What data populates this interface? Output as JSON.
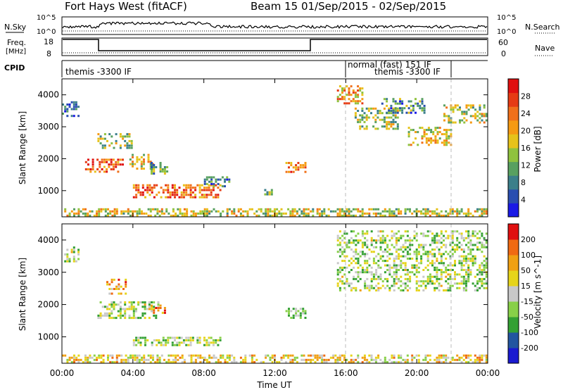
{
  "header": {
    "radar": "Fort Hays West (fitACF)",
    "beam_period": "Beam 15  01/Sep/2015 - 02/Sep/2015"
  },
  "top_panels": {
    "nsky_label": "N.Sky",
    "nsky_ticks": [
      "10^5",
      "10^0"
    ],
    "nsearch_label": "N.Search",
    "nsearch_ticks": [
      "10^5",
      "10^0"
    ],
    "freq_label": "Freq.",
    "freq_unit": "[MHz]",
    "freq_ticks": [
      "18",
      "8"
    ],
    "nave_label": "Nave",
    "nave_ticks": [
      "60",
      "0"
    ],
    "cpid_label": "CPID",
    "cpid_segments": [
      {
        "start_hour": 0,
        "end_hour": 16,
        "label": "themis -3300 IF"
      },
      {
        "start_hour": 16,
        "end_hour": 22,
        "label": "normal (fast) 151 IF"
      },
      {
        "start_hour": 16,
        "end_hour": 24,
        "label": "themis -3300 IF"
      }
    ]
  },
  "chart_data": [
    {
      "type": "heatmap",
      "panel": "power",
      "ylabel": "Slant Range [km]",
      "ylim": [
        180,
        4500
      ],
      "yticks": [
        1000,
        2000,
        3000,
        4000
      ],
      "colorbar_label": "Power [dB]",
      "colorbar_ticks": [
        "4",
        "8",
        "12",
        "16",
        "20",
        "24",
        "28"
      ],
      "colorbar_colors": [
        "#1a1ae6",
        "#2a4eb0",
        "#3b7f8a",
        "#58a060",
        "#8fc23e",
        "#e6c21a",
        "#f59a12",
        "#f0701a",
        "#e63b14",
        "#e01010"
      ],
      "x_range_hours": [
        0,
        24
      ],
      "features": [
        {
          "start_hour": 0.0,
          "end_hour": 1.0,
          "range_min": 3300,
          "range_max": 3800,
          "level": 0.2
        },
        {
          "start_hour": 1.3,
          "end_hour": 3.5,
          "range_min": 1550,
          "range_max": 2000,
          "level": 0.8
        },
        {
          "start_hour": 2.0,
          "end_hour": 4.0,
          "range_min": 2300,
          "range_max": 2800,
          "level": 0.45
        },
        {
          "start_hour": 3.8,
          "end_hour": 5.2,
          "range_min": 1650,
          "range_max": 2150,
          "level": 0.55
        },
        {
          "start_hour": 4.0,
          "end_hour": 9.0,
          "range_min": 750,
          "range_max": 1200,
          "level": 0.75
        },
        {
          "start_hour": 5.0,
          "end_hour": 6.0,
          "range_min": 1500,
          "range_max": 1900,
          "level": 0.35
        },
        {
          "start_hour": 8.0,
          "end_hour": 9.5,
          "range_min": 1100,
          "range_max": 1450,
          "level": 0.3
        },
        {
          "start_hour": 11.4,
          "end_hour": 11.9,
          "range_min": 850,
          "range_max": 1050,
          "level": 0.4
        },
        {
          "start_hour": 12.6,
          "end_hour": 13.8,
          "range_min": 1550,
          "range_max": 1900,
          "level": 0.7
        },
        {
          "start_hour": 15.5,
          "end_hour": 17.0,
          "range_min": 3700,
          "range_max": 4300,
          "level": 0.65
        },
        {
          "start_hour": 16.5,
          "end_hour": 19.0,
          "range_min": 2900,
          "range_max": 3600,
          "level": 0.45
        },
        {
          "start_hour": 18.0,
          "end_hour": 20.5,
          "range_min": 3400,
          "range_max": 3900,
          "level": 0.3
        },
        {
          "start_hour": 19.5,
          "end_hour": 22.0,
          "range_min": 2400,
          "range_max": 3000,
          "level": 0.55
        },
        {
          "start_hour": 21.5,
          "end_hour": 24.0,
          "range_min": 3100,
          "range_max": 3700,
          "level": 0.5
        },
        {
          "start_hour": 0.0,
          "end_hour": 24.0,
          "range_min": 180,
          "range_max": 450,
          "level": 0.5
        }
      ]
    },
    {
      "type": "heatmap",
      "panel": "velocity",
      "ylabel": "Slant Range [km]",
      "xlabel": "Time UT",
      "ylim": [
        180,
        4500
      ],
      "yticks": [
        1000,
        2000,
        3000,
        4000
      ],
      "xticks": [
        "00:00",
        "04:00",
        "08:00",
        "12:00",
        "16:00",
        "20:00",
        "00:00"
      ],
      "colorbar_label": "Velocity [m s^-1]",
      "colorbar_ticks": [
        "200",
        "100",
        "50",
        "15",
        "-15",
        "-50",
        "-100",
        "-200"
      ],
      "colorbar_colors": [
        "#1a1ad0",
        "#2255a0",
        "#33a033",
        "#88d048",
        "#c8c8c8",
        "#e6d41a",
        "#f0a012",
        "#f06a12",
        "#e01010"
      ],
      "x_range_hours": [
        0,
        24
      ],
      "features": [
        {
          "start_hour": 0.0,
          "end_hour": 1.0,
          "range_min": 3300,
          "range_max": 3800,
          "level": 0.45
        },
        {
          "start_hour": 2.5,
          "end_hour": 3.8,
          "range_min": 2300,
          "range_max": 2800,
          "level": 0.7
        },
        {
          "start_hour": 2.0,
          "end_hour": 5.5,
          "range_min": 1550,
          "range_max": 2100,
          "level": 0.45
        },
        {
          "start_hour": 5.0,
          "end_hour": 6.0,
          "range_min": 1700,
          "range_max": 2000,
          "level": 0.8
        },
        {
          "start_hour": 4.0,
          "end_hour": 9.0,
          "range_min": 700,
          "range_max": 1000,
          "level": 0.45
        },
        {
          "start_hour": 12.6,
          "end_hour": 13.8,
          "range_min": 1550,
          "range_max": 1900,
          "level": 0.45
        },
        {
          "start_hour": 15.5,
          "end_hour": 24.0,
          "range_min": 2400,
          "range_max": 4300,
          "level": 0.45
        },
        {
          "start_hour": 0.0,
          "end_hour": 24.0,
          "range_min": 180,
          "range_max": 450,
          "level": 0.6
        }
      ]
    }
  ]
}
